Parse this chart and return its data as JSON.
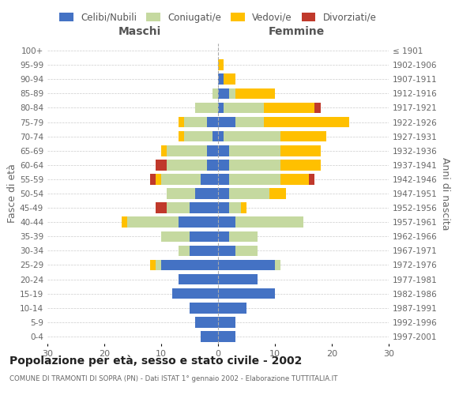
{
  "age_groups": [
    "0-4",
    "5-9",
    "10-14",
    "15-19",
    "20-24",
    "25-29",
    "30-34",
    "35-39",
    "40-44",
    "45-49",
    "50-54",
    "55-59",
    "60-64",
    "65-69",
    "70-74",
    "75-79",
    "80-84",
    "85-89",
    "90-94",
    "95-99",
    "100+"
  ],
  "birth_years": [
    "1997-2001",
    "1992-1996",
    "1987-1991",
    "1982-1986",
    "1977-1981",
    "1972-1976",
    "1967-1971",
    "1962-1966",
    "1957-1961",
    "1952-1956",
    "1947-1951",
    "1942-1946",
    "1937-1941",
    "1932-1936",
    "1927-1931",
    "1922-1926",
    "1917-1921",
    "1912-1916",
    "1907-1911",
    "1902-1906",
    "≤ 1901"
  ],
  "colors": {
    "celibi": "#4472c4",
    "coniugati": "#c5d9a0",
    "vedovi": "#ffc000",
    "divorziati": "#c0392b"
  },
  "maschi": {
    "celibi": [
      3,
      4,
      5,
      8,
      7,
      10,
      5,
      5,
      7,
      5,
      4,
      3,
      2,
      2,
      1,
      2,
      0,
      0,
      0,
      0,
      0
    ],
    "coniugati": [
      0,
      0,
      0,
      0,
      0,
      1,
      2,
      5,
      9,
      4,
      5,
      7,
      7,
      7,
      5,
      4,
      4,
      1,
      0,
      0,
      0
    ],
    "vedovi": [
      0,
      0,
      0,
      0,
      0,
      1,
      0,
      0,
      1,
      0,
      0,
      1,
      0,
      1,
      1,
      1,
      0,
      0,
      0,
      0,
      0
    ],
    "divorziati": [
      0,
      0,
      0,
      0,
      0,
      0,
      0,
      0,
      0,
      2,
      0,
      1,
      2,
      0,
      0,
      0,
      0,
      0,
      0,
      0,
      0
    ]
  },
  "femmine": {
    "celibi": [
      3,
      3,
      5,
      10,
      7,
      10,
      3,
      2,
      3,
      2,
      2,
      2,
      2,
      2,
      1,
      3,
      1,
      2,
      1,
      0,
      0
    ],
    "coniugati": [
      0,
      0,
      0,
      0,
      0,
      1,
      4,
      5,
      12,
      2,
      7,
      9,
      9,
      9,
      10,
      5,
      7,
      1,
      0,
      0,
      0
    ],
    "vedovi": [
      0,
      0,
      0,
      0,
      0,
      0,
      0,
      0,
      0,
      1,
      3,
      5,
      7,
      7,
      8,
      15,
      9,
      7,
      2,
      1,
      0
    ],
    "divorziati": [
      0,
      0,
      0,
      0,
      0,
      0,
      0,
      0,
      0,
      0,
      0,
      1,
      0,
      0,
      0,
      0,
      1,
      0,
      0,
      0,
      0
    ]
  },
  "xlim": 30,
  "title": "Popolazione per età, sesso e stato civile - 2002",
  "subtitle": "COMUNE DI TRAMONTI DI SOPRA (PN) - Dati ISTAT 1° gennaio 2002 - Elaborazione TUTTITALIA.IT",
  "ylabel_left": "Fasce di età",
  "ylabel_right": "Anni di nascita",
  "xlabel_maschi": "Maschi",
  "xlabel_femmine": "Femmine",
  "legend_labels": [
    "Celibi/Nubili",
    "Coniugati/e",
    "Vedovi/e",
    "Divorziati/e"
  ],
  "bg_color": "#ffffff",
  "grid_color": "#cccccc"
}
